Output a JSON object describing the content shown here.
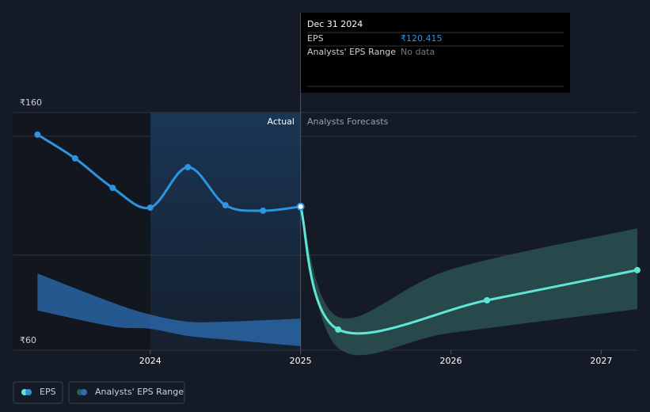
{
  "chart_data": {
    "type": "line",
    "xlim": [
      2023.09,
      2027.24
    ],
    "xticks": [
      2024,
      2025,
      2026,
      2027
    ],
    "ylim": [
      60,
      160
    ],
    "yticks": [
      {
        "value": 60,
        "label": "₹60"
      },
      {
        "value": 160,
        "label": "₹160"
      }
    ],
    "gridlines": [
      100,
      150
    ],
    "divider": 2025,
    "region_labels": [
      "Actual",
      "Analysts Forecasts"
    ],
    "series": [
      {
        "name": "EPS",
        "color": "#2d95e0",
        "forecast_color": "#5fe6d6",
        "x": [
          2023.25,
          2023.5,
          2023.75,
          2024.0,
          2024.25,
          2024.5,
          2024.75,
          2025.0
        ],
        "values": [
          150.7,
          140.7,
          128.3,
          120,
          137,
          121,
          118.7,
          120.415
        ],
        "forecast_x": [
          2025.0,
          2025.25,
          2026.24,
          2027.24
        ],
        "forecast_values": [
          120.415,
          68.7,
          81,
          93.7
        ]
      },
      {
        "name": "Analysts' EPS Range",
        "color": "#2f5a58",
        "pieces": [
          {
            "color": "#2c6fb4",
            "x": [
              2023.25,
              2023.75,
              2024.0,
              2024.25,
              2024.5,
              2025.0
            ],
            "high": [
              92.3,
              80,
              75,
              72,
              72,
              73.3
            ],
            "low": [
              76.7,
              70,
              69,
              66,
              64.5,
              61.7
            ]
          },
          {
            "color": "#2f5a58",
            "x": [
              2025.0,
              2025.25,
              2026.0,
              2027.24
            ],
            "high": [
              120.415,
              74,
              94,
              111.3
            ],
            "low": [
              120.415,
              61,
              67.3,
              77.3
            ]
          }
        ]
      }
    ],
    "tooltip": {
      "date": "Dec 31 2024",
      "rows": [
        {
          "label": "EPS",
          "value": "₹120.415"
        },
        {
          "label": "Analysts' EPS Range",
          "value": "No data"
        }
      ]
    }
  }
}
